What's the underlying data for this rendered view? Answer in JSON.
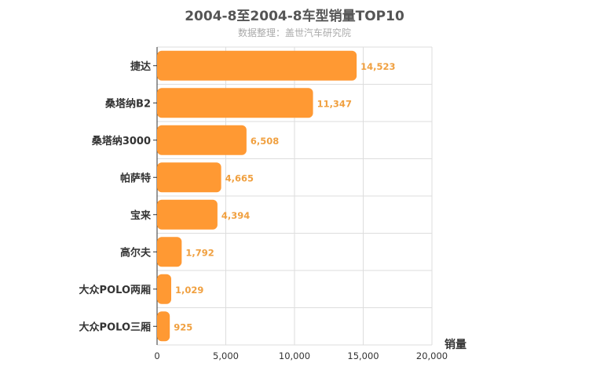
{
  "chart_data": {
    "type": "bar",
    "orientation": "horizontal",
    "title": "2004-8至2004-8车型销量TOP10",
    "subtitle": "数据整理：盖世汽车研究院",
    "categories": [
      "捷达",
      "桑塔纳B2",
      "桑塔纳3000",
      "帕萨特",
      "宝来",
      "高尔夫",
      "大众POLO两厢",
      "大众POLO三厢"
    ],
    "values": [
      14523,
      11347,
      6508,
      4665,
      4394,
      1792,
      1029,
      925
    ],
    "value_labels": [
      "14,523",
      "11,347",
      "6,508",
      "4,665",
      "4,394",
      "1,792",
      "1,029",
      "925"
    ],
    "xlabel": "销量",
    "ylabel": "",
    "xlim": [
      0,
      20000
    ],
    "xticks": [
      0,
      5000,
      10000,
      15000,
      20000
    ],
    "xtick_labels": [
      "0",
      "5,000",
      "10,000",
      "15,000",
      "20,000"
    ],
    "grid": true,
    "colors": {
      "bar": "#ff9933",
      "value_label": "#f0a040",
      "grid": "#dddddd"
    }
  }
}
